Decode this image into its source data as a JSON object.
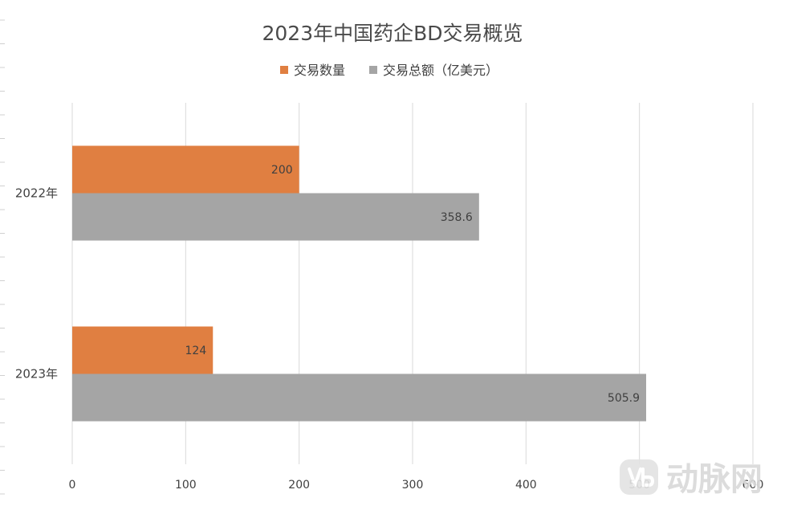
{
  "chart_data": {
    "type": "bar",
    "orientation": "horizontal",
    "title": "2023年中国药企BD交易概览",
    "categories": [
      "2022年",
      "2023年"
    ],
    "series": [
      {
        "name": "交易数量",
        "values": [
          200,
          124
        ],
        "color": "#E07F41"
      },
      {
        "name": "交易总额（亿美元）",
        "values": [
          358.6,
          505.9
        ],
        "color": "#A5A5A5"
      }
    ],
    "data_labels": [
      [
        "200",
        "124"
      ],
      [
        "358.6",
        "505.9"
      ]
    ],
    "xlim": [
      0,
      600
    ],
    "xticks": [
      0,
      100,
      200,
      300,
      400,
      500,
      600
    ],
    "xtick_labels": [
      "0",
      "100",
      "200",
      "300",
      "400",
      "500",
      "600"
    ],
    "grid": "vertical",
    "legend_position": "top"
  },
  "watermark": {
    "text": "动脉网",
    "icon": "vb-logo-icon"
  }
}
